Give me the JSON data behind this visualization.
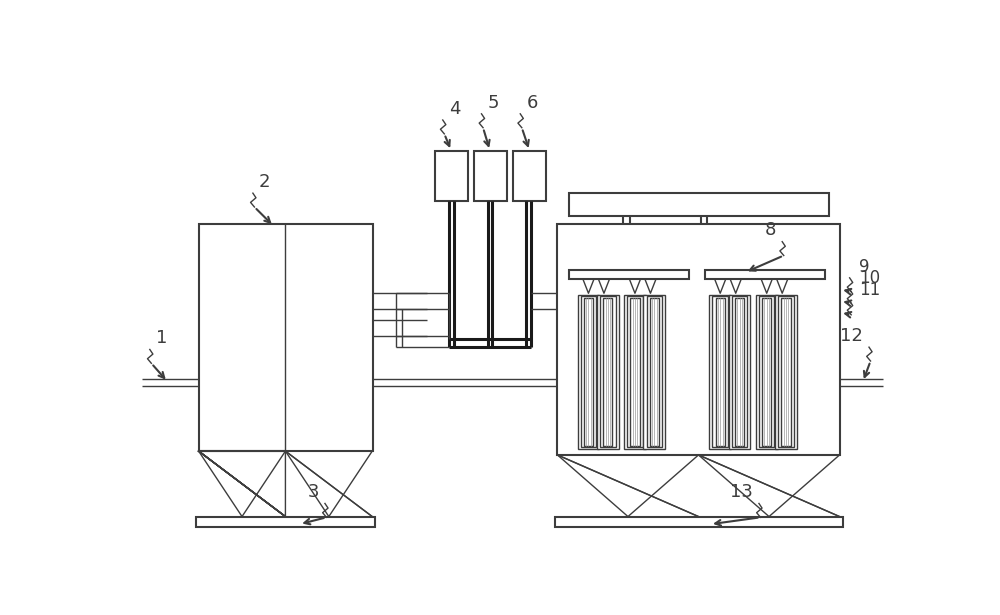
{
  "bg": "#ffffff",
  "lc": "#3d3d3d",
  "lc_dark": "#1a1a1a",
  "lw1": 1.0,
  "lw2": 1.5,
  "lw3": 2.2,
  "fig_w": 10.0,
  "fig_h": 6.15
}
